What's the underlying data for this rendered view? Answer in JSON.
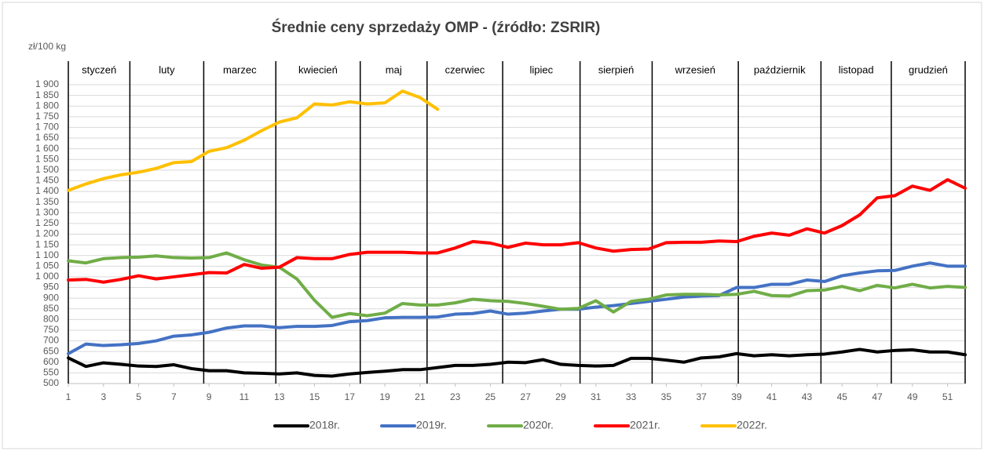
{
  "chart_data": {
    "type": "line",
    "title": "Średnie ceny sprzedaży OMP - (źródło: ZSRIR)",
    "y_label": "zł/100 kg",
    "x": [
      1,
      2,
      3,
      4,
      5,
      6,
      7,
      8,
      9,
      10,
      11,
      12,
      13,
      14,
      15,
      16,
      17,
      18,
      19,
      20,
      21,
      22,
      23,
      24,
      25,
      26,
      27,
      28,
      29,
      30,
      31,
      32,
      33,
      34,
      35,
      36,
      37,
      38,
      39,
      40,
      41,
      42,
      43,
      44,
      45,
      46,
      47,
      48,
      49,
      50,
      51,
      52
    ],
    "xlim": [
      1,
      52
    ],
    "xticks": [
      1,
      3,
      5,
      7,
      9,
      11,
      13,
      15,
      17,
      19,
      21,
      23,
      25,
      27,
      29,
      31,
      33,
      35,
      37,
      39,
      41,
      43,
      45,
      47,
      49,
      51
    ],
    "ylim": [
      500,
      1900
    ],
    "yticks": [
      500,
      550,
      600,
      650,
      700,
      750,
      800,
      850,
      900,
      950,
      {
        "value": 1000,
        "label": "1 000"
      },
      {
        "value": 1050,
        "label": "1 050"
      },
      {
        "value": 1100,
        "label": "1 100"
      },
      {
        "value": 1150,
        "label": "1 150"
      },
      {
        "value": 1200,
        "label": "1 200"
      },
      {
        "value": 1250,
        "label": "1 250"
      },
      {
        "value": 1300,
        "label": "1 300"
      },
      {
        "value": 1350,
        "label": "1 350"
      },
      {
        "value": 1400,
        "label": "1 400"
      },
      {
        "value": 1450,
        "label": "1 450"
      },
      {
        "value": 1500,
        "label": "1 500"
      },
      {
        "value": 1550,
        "label": "1 550"
      },
      {
        "value": 1600,
        "label": "1 600"
      },
      {
        "value": 1650,
        "label": "1 650"
      },
      {
        "value": 1700,
        "label": "1 700"
      },
      {
        "value": 1750,
        "label": "1 750"
      },
      {
        "value": 1800,
        "label": "1 800"
      },
      {
        "value": 1850,
        "label": "1 850"
      },
      {
        "value": 1900,
        "label": "1 900"
      }
    ],
    "grid": true,
    "legend": "bottom",
    "months": [
      "styczeń",
      "luty",
      "marzec",
      "kwiecień",
      "maj",
      "czerwiec",
      "lipiec",
      "sierpień",
      "wrzesień",
      "październik",
      "listopad",
      "grudzień"
    ],
    "month_dividers": [
      1,
      4.5,
      8.7,
      12.8,
      17.6,
      21.4,
      25.7,
      30.1,
      34.2,
      39.1,
      43.8,
      47.8,
      52
    ],
    "series": [
      {
        "name": "2018r.",
        "color": "#000000",
        "values": [
          620,
          580,
          597,
          590,
          582,
          580,
          588,
          570,
          560,
          560,
          550,
          548,
          545,
          550,
          538,
          535,
          545,
          552,
          558,
          565,
          565,
          575,
          585,
          585,
          590,
          600,
          598,
          612,
          590,
          585,
          582,
          585,
          618,
          618,
          610,
          600,
          620,
          625,
          640,
          630,
          635,
          630,
          635,
          638,
          648,
          660,
          648,
          655,
          658,
          648,
          648,
          635
        ]
      },
      {
        "name": "2019r.",
        "color": "#4472c4",
        "values": [
          640,
          685,
          678,
          682,
          688,
          700,
          722,
          728,
          740,
          760,
          770,
          770,
          762,
          768,
          768,
          772,
          790,
          795,
          808,
          810,
          810,
          812,
          825,
          828,
          840,
          825,
          830,
          840,
          848,
          848,
          858,
          865,
          875,
          885,
          895,
          905,
          910,
          912,
          950,
          950,
          965,
          965,
          985,
          978,
          1005,
          1018,
          1028,
          1030,
          1050,
          1065,
          1050,
          1050
        ]
      },
      {
        "name": "2020r.",
        "color": "#70ad47",
        "values": [
          1075,
          1065,
          1085,
          1090,
          1092,
          1098,
          1090,
          1088,
          1090,
          1112,
          1080,
          1055,
          1045,
          990,
          890,
          810,
          828,
          818,
          830,
          875,
          868,
          868,
          878,
          895,
          888,
          885,
          875,
          862,
          848,
          852,
          888,
          835,
          885,
          895,
          915,
          918,
          918,
          915,
          918,
          932,
          912,
          910,
          935,
          938,
          955,
          935,
          960,
          948,
          965,
          948,
          955,
          950
        ]
      },
      {
        "name": "2021r.",
        "color": "#ff0000",
        "values": [
          985,
          988,
          975,
          988,
          1005,
          990,
          1000,
          1010,
          1020,
          1018,
          1058,
          1040,
          1045,
          1090,
          1085,
          1085,
          1105,
          1115,
          1115,
          1115,
          1112,
          1112,
          1135,
          1165,
          1158,
          1138,
          1158,
          1150,
          1150,
          1160,
          1135,
          1120,
          1128,
          1130,
          1160,
          1162,
          1162,
          1168,
          1165,
          1190,
          1205,
          1195,
          1225,
          1205,
          1240,
          1290,
          1370,
          1380,
          1425,
          1405,
          1455,
          1415
        ]
      },
      {
        "name": "2022r.",
        "color": "#ffc000",
        "values": [
          1405,
          1435,
          1460,
          1478,
          1490,
          1508,
          1535,
          1540,
          1588,
          1605,
          1640,
          1685,
          1725,
          1745,
          1810,
          1805,
          1820,
          1810,
          1815,
          1870,
          1840,
          1785,
          null,
          null,
          null,
          null,
          null,
          null,
          null,
          null,
          null,
          null,
          null,
          null,
          null,
          null,
          null,
          null,
          null,
          null,
          null,
          null,
          null,
          null,
          null,
          null,
          null,
          null,
          null,
          null,
          null,
          null
        ]
      }
    ]
  }
}
